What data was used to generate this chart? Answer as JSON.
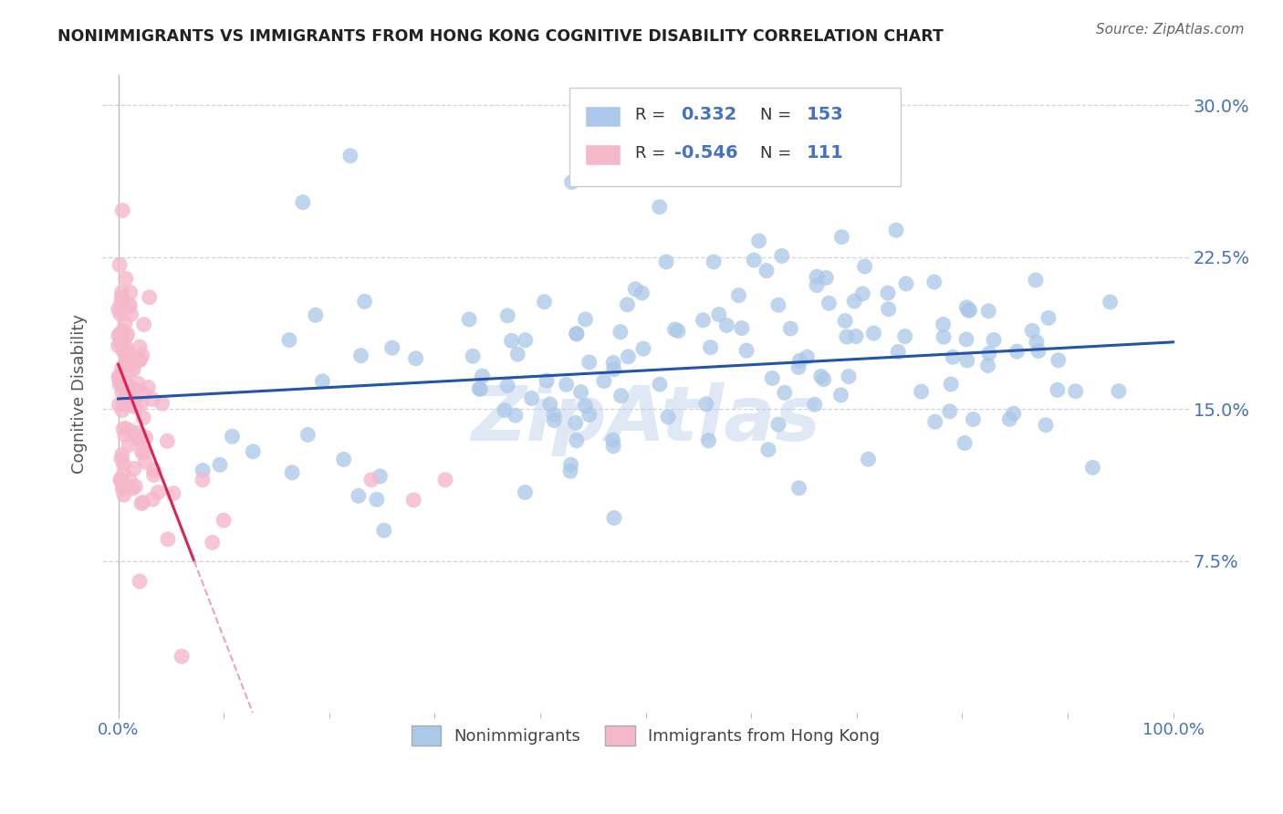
{
  "title": "NONIMMIGRANTS VS IMMIGRANTS FROM HONG KONG COGNITIVE DISABILITY CORRELATION CHART",
  "source": "Source: ZipAtlas.com",
  "ylabel": "Cognitive Disability",
  "y_ticks": [
    0.075,
    0.15,
    0.225,
    0.3
  ],
  "y_tick_labels": [
    "7.5%",
    "15.0%",
    "22.5%",
    "30.0%"
  ],
  "x_ticks": [
    0.0,
    0.1,
    0.2,
    0.3,
    0.4,
    0.5,
    0.6,
    0.7,
    0.8,
    0.9,
    1.0
  ],
  "x_tick_labels": [
    "0.0%",
    "",
    "",
    "",
    "",
    "",
    "",
    "",
    "",
    "",
    "100.0%"
  ],
  "watermark": "ZipAtlas",
  "blue_R": 0.332,
  "blue_N": 153,
  "pink_R": -0.546,
  "pink_N": 111,
  "blue_color": "#aac8e8",
  "pink_color": "#f5b8cb",
  "blue_line_color": "#2255aa",
  "pink_line_color": "#dd2255",
  "pink_dash_color": "#f0a0b8",
  "legend_blue_fill": "#aac8e8",
  "legend_pink_fill": "#f5b8cb",
  "title_color": "#222222",
  "source_color": "#666666",
  "ylabel_color": "#555555",
  "tick_label_color": "#4472c4",
  "background_color": "#ffffff",
  "grid_color": "#ccd5e8",
  "ylim": [
    0.0,
    0.315
  ],
  "xlim": [
    -0.015,
    1.015
  ],
  "blue_line_y_start": 0.155,
  "blue_line_y_end": 0.183,
  "pink_line_y_at0": 0.172,
  "pink_line_slope": -1.35
}
